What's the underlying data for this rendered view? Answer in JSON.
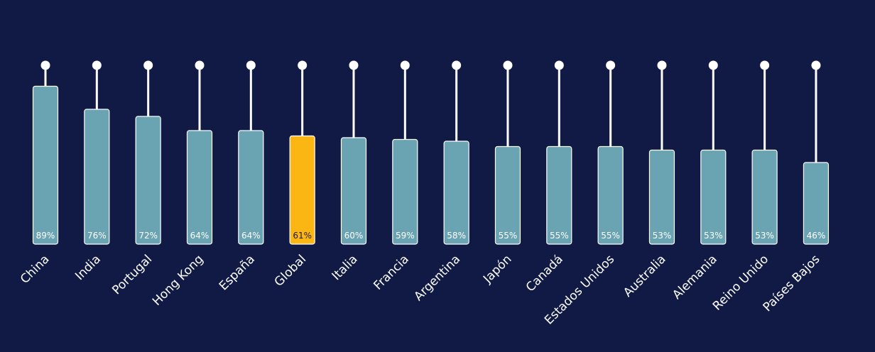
{
  "chart_data": {
    "type": "bar",
    "categories": [
      "China",
      "India",
      "Portugal",
      "Hong Kong",
      "España",
      "Global",
      "Italia",
      "Francia",
      "Argentina",
      "Japón",
      "Canadá",
      "Estados Unidos",
      "Australia",
      "Alemania",
      "Reino Unido",
      "Países Bajos"
    ],
    "values": [
      89,
      76,
      72,
      64,
      64,
      61,
      60,
      59,
      58,
      55,
      55,
      55,
      53,
      53,
      53,
      46
    ],
    "value_labels": [
      "89%",
      "76%",
      "72%",
      "64%",
      "64%",
      "61%",
      "60%",
      "59%",
      "58%",
      "55%",
      "55%",
      "55%",
      "53%",
      "53%",
      "53%",
      "46%"
    ],
    "highlight_category": "Global",
    "ylim": [
      0,
      100
    ],
    "title": "",
    "xlabel": "",
    "ylabel": "",
    "grid": false,
    "legend": "none",
    "colors": {
      "background": "#111a44",
      "bar": "#6aa3b1",
      "bar_highlight": "#fcb614",
      "stem": "#ffffff",
      "label_on_bar": "#ffffff",
      "label_on_highlight": "#1a1a2e"
    }
  }
}
